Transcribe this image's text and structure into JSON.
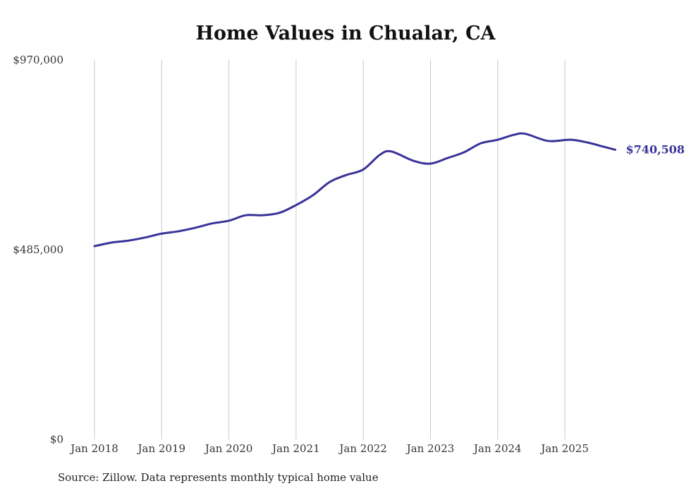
{
  "chart_data": {
    "type": "line",
    "title": "Home Values in Chualar, CA",
    "xlabel": "",
    "ylabel": "",
    "ylim": [
      0,
      970000
    ],
    "y_ticks": [
      {
        "value": 0,
        "label": "$0"
      },
      {
        "value": 485000,
        "label": "$485,000"
      },
      {
        "value": 970000,
        "label": "$970,000"
      }
    ],
    "x_ticks": [
      {
        "date": "2018-01",
        "label": "Jan 2018"
      },
      {
        "date": "2019-01",
        "label": "Jan 2019"
      },
      {
        "date": "2020-01",
        "label": "Jan 2020"
      },
      {
        "date": "2021-01",
        "label": "Jan 2021"
      },
      {
        "date": "2022-01",
        "label": "Jan 2022"
      },
      {
        "date": "2023-01",
        "label": "Jan 2023"
      },
      {
        "date": "2024-01",
        "label": "Jan 2024"
      },
      {
        "date": "2025-01",
        "label": "Jan 2025"
      }
    ],
    "grid": "vertical",
    "series": [
      {
        "name": "Typical home value",
        "color": "#3a3399",
        "points": [
          [
            "2018-01",
            494000
          ],
          [
            "2018-04",
            503000
          ],
          [
            "2018-07",
            508000
          ],
          [
            "2018-10",
            516000
          ],
          [
            "2019-01",
            526000
          ],
          [
            "2019-04",
            532000
          ],
          [
            "2019-07",
            541000
          ],
          [
            "2019-10",
            552000
          ],
          [
            "2020-01",
            559000
          ],
          [
            "2020-04",
            573000
          ],
          [
            "2020-07",
            573000
          ],
          [
            "2020-10",
            579000
          ],
          [
            "2021-01",
            599000
          ],
          [
            "2021-04",
            624000
          ],
          [
            "2021-07",
            658000
          ],
          [
            "2021-10",
            676000
          ],
          [
            "2022-01",
            690000
          ],
          [
            "2022-04",
            728000
          ],
          [
            "2022-06",
            736000
          ],
          [
            "2022-10",
            712000
          ],
          [
            "2023-01",
            705000
          ],
          [
            "2023-04",
            719000
          ],
          [
            "2023-07",
            734000
          ],
          [
            "2023-10",
            757000
          ],
          [
            "2024-01",
            766000
          ],
          [
            "2024-04",
            779000
          ],
          [
            "2024-06",
            781000
          ],
          [
            "2024-10",
            763000
          ],
          [
            "2025-02",
            766000
          ],
          [
            "2025-05",
            759000
          ],
          [
            "2025-08",
            748000
          ],
          [
            "2025-10",
            740508
          ]
        ]
      }
    ],
    "end_label": "$740,508",
    "source": "Source: Zillow. Data represents monthly typical home value"
  }
}
